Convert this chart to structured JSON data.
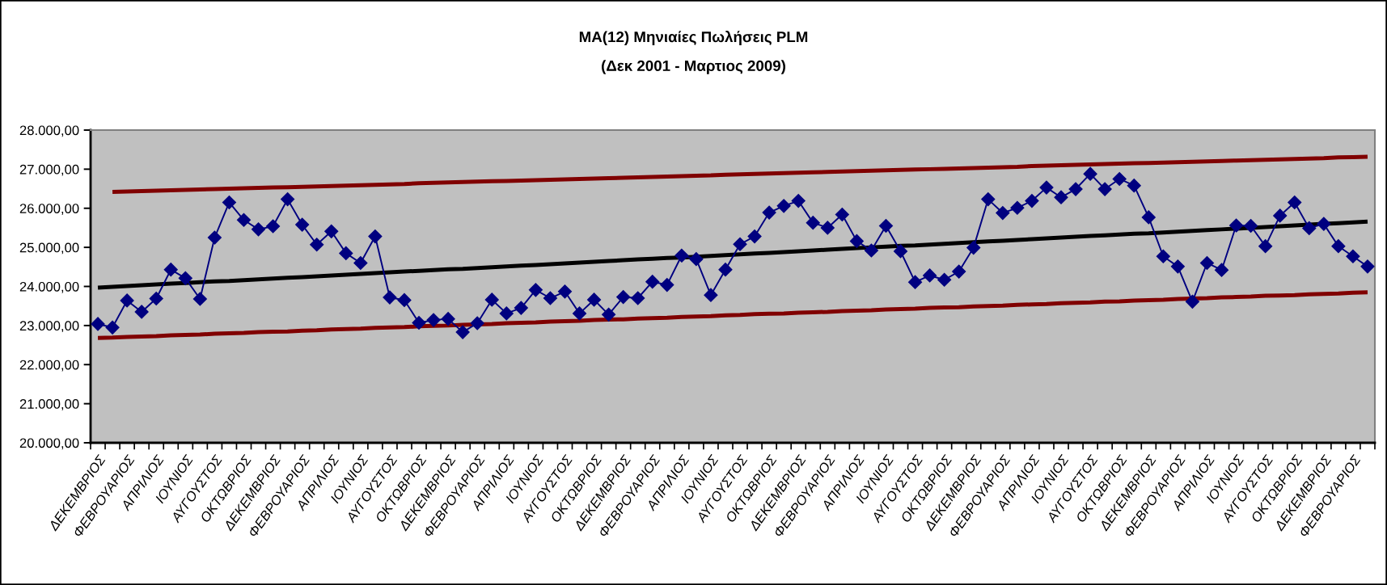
{
  "chart_data": {
    "type": "line",
    "title": "MA(12) Μηνιαίες Πωλήσεις PLM",
    "subtitle": "(Δεκ 2001 - Μαρτιος 2009)",
    "categories": [
      "ΔΕΚΕΜΒΡΙΟΣ",
      null,
      "ΦΕΒΡΟΥΑΡΙΟΣ",
      null,
      "ΑΠΡΙΛΙΟΣ",
      null,
      "ΙΟΥΝΙΟΣ",
      null,
      "ΑΥΓΟΥΣΤΟΣ",
      null,
      "ΟΚΤΩΒΡΙΟΣ",
      null,
      "ΔΕΚΕΜΒΡΙΟΣ",
      null,
      "ΦΕΒΡΟΥΑΡΙΟΣ",
      null,
      "ΑΠΡΙΛΙΟΣ",
      null,
      "ΙΟΥΝΙΟΣ",
      null,
      "ΑΥΓΟΥΣΤΟΣ",
      null,
      "ΟΚΤΩΒΡΙΟΣ",
      null,
      "ΔΕΚΕΜΒΡΙΟΣ",
      null,
      "ΦΕΒΡΟΥΑΡΙΟΣ",
      null,
      "ΑΠΡΙΛΙΟΣ",
      null,
      "ΙΟΥΝΙΟΣ",
      null,
      "ΑΥΓΟΥΣΤΟΣ",
      null,
      "ΟΚΤΩΒΡΙΟΣ",
      null,
      "ΔΕΚΕΜΒΡΙΟΣ",
      null,
      "ΦΕΒΡΟΥΑΡΙΟΣ",
      null,
      "ΑΠΡΙΛΙΟΣ",
      null,
      "ΙΟΥΝΙΟΣ",
      null,
      "ΑΥΓΟΥΣΤΟΣ",
      null,
      "ΟΚΤΩΒΡΙΟΣ",
      null,
      "ΔΕΚΕΜΒΡΙΟΣ",
      null,
      "ΦΕΒΡΟΥΑΡΙΟΣ",
      null,
      "ΑΠΡΙΛΙΟΣ",
      null,
      "ΙΟΥΝΙΟΣ",
      null,
      "ΑΥΓΟΥΣΤΟΣ",
      null,
      "ΟΚΤΩΒΡΙΟΣ",
      null,
      "ΔΕΚΕΜΒΡΙΟΣ",
      null,
      "ΦΕΒΡΟΥΑΡΙΟΣ",
      null,
      "ΑΠΡΙΛΙΟΣ",
      null,
      "ΙΟΥΝΙΟΣ",
      null,
      "ΑΥΓΟΥΣΤΟΣ",
      null,
      "ΟΚΤΩΒΡΙΟΣ",
      null,
      "ΔΕΚΕΜΒΡΙΟΣ",
      null,
      "ΦΕΒΡΟΥΑΡΙΟΣ",
      null,
      "ΑΠΡΙΛΙΟΣ",
      null,
      "ΙΟΥΝΙΟΣ",
      null,
      "ΑΥΓΟΥΣΤΟΣ",
      null,
      "ΟΚΤΩΒΡΙΟΣ",
      null,
      "ΔΕΚΕΜΒΡΙΟΣ",
      null,
      "ΦΕΒΡΟΥΑΡΙΟΣ",
      null
    ],
    "ylim": [
      20000,
      28000
    ],
    "yticks": [
      {
        "value": 20000,
        "label": "20.000,00"
      },
      {
        "value": 21000,
        "label": "21.000,00"
      },
      {
        "value": 22000,
        "label": "22.000,00"
      },
      {
        "value": 23000,
        "label": "23.000,00"
      },
      {
        "value": 24000,
        "label": "24.000,00"
      },
      {
        "value": 25000,
        "label": "25.000,00"
      },
      {
        "value": 26000,
        "label": "26.000,00"
      },
      {
        "value": 27000,
        "label": "27.000,00"
      },
      {
        "value": 28000,
        "label": "28.000,00"
      }
    ],
    "series": [
      {
        "color": "#800000",
        "values": [
          null,
          26420,
          26430,
          26440,
          26450,
          26460,
          26470,
          26480,
          26490,
          26500,
          26510,
          26520,
          26530,
          26540,
          26550,
          26560,
          26570,
          26580,
          26590,
          26600,
          26610,
          26620,
          26640,
          26650,
          26660,
          26670,
          26680,
          26690,
          26700,
          26710,
          26720,
          26730,
          26740,
          26750,
          26760,
          26770,
          26780,
          26790,
          26800,
          26810,
          26820,
          26830,
          26840,
          26860,
          26870,
          26880,
          26890,
          26900,
          26910,
          26920,
          26930,
          26940,
          26950,
          26960,
          26970,
          26980,
          26990,
          27000,
          27010,
          27020,
          27030,
          27040,
          27050,
          27060,
          27080,
          27090,
          27100,
          27110,
          27120,
          27130,
          27140,
          27150,
          27160,
          27170,
          27180,
          27190,
          27200,
          27210,
          27220,
          27230,
          27240,
          27250,
          27260,
          27270,
          27280,
          27300,
          27310,
          27320
        ]
      },
      {
        "color": "#800000",
        "values": [
          22680,
          22690,
          22710,
          22720,
          22730,
          22750,
          22760,
          22770,
          22790,
          22800,
          22810,
          22830,
          22840,
          22850,
          22870,
          22880,
          22900,
          22910,
          22920,
          22940,
          22950,
          22960,
          22980,
          22990,
          23000,
          23020,
          23030,
          23040,
          23060,
          23070,
          23080,
          23100,
          23110,
          23120,
          23140,
          23150,
          23160,
          23180,
          23190,
          23200,
          23220,
          23230,
          23240,
          23260,
          23270,
          23290,
          23300,
          23310,
          23330,
          23340,
          23350,
          23370,
          23380,
          23390,
          23410,
          23420,
          23430,
          23450,
          23460,
          23470,
          23490,
          23500,
          23510,
          23530,
          23540,
          23550,
          23570,
          23580,
          23590,
          23610,
          23620,
          23640,
          23650,
          23660,
          23680,
          23690,
          23700,
          23720,
          23730,
          23740,
          23760,
          23770,
          23780,
          23800,
          23810,
          23820,
          23840,
          23850
        ]
      },
      {
        "color": "#000000",
        "values": [
          23970,
          23990,
          24010,
          24030,
          24050,
          24070,
          24090,
          24110,
          24130,
          24140,
          24160,
          24180,
          24200,
          24220,
          24240,
          24260,
          24280,
          24300,
          24320,
          24340,
          24360,
          24380,
          24400,
          24420,
          24440,
          24450,
          24470,
          24490,
          24510,
          24530,
          24550,
          24570,
          24590,
          24610,
          24630,
          24650,
          24670,
          24690,
          24710,
          24730,
          24740,
          24760,
          24780,
          24800,
          24820,
          24840,
          24860,
          24880,
          24900,
          24920,
          24940,
          24960,
          24980,
          25000,
          25020,
          25040,
          25050,
          25070,
          25090,
          25110,
          25130,
          25150,
          25170,
          25190,
          25210,
          25230,
          25250,
          25270,
          25290,
          25310,
          25330,
          25350,
          25360,
          25380,
          25400,
          25420,
          25440,
          25460,
          25480,
          25500,
          25520,
          25540,
          25560,
          25580,
          25600,
          25620,
          25640,
          25660
        ]
      },
      {
        "color": "#000080",
        "marker": "diamond",
        "values": [
          23040,
          22950,
          23640,
          23350,
          23690,
          24430,
          24210,
          23680,
          25250,
          26150,
          25700,
          25460,
          25540,
          26230,
          25580,
          25070,
          25410,
          24850,
          24600,
          25280,
          23720,
          23650,
          23070,
          23140,
          23170,
          22830,
          23060,
          23660,
          23310,
          23450,
          23910,
          23700,
          23870,
          23310,
          23660,
          23280,
          23730,
          23700,
          24120,
          24040,
          24790,
          24700,
          23780,
          24430,
          25080,
          25280,
          25890,
          26060,
          26190,
          25630,
          25500,
          25840,
          25160,
          24920,
          25550,
          24900,
          24110,
          24280,
          24170,
          24380,
          24990,
          26230,
          25880,
          26010,
          26190,
          26530,
          26280,
          26490,
          26880,
          26490,
          26750,
          26580,
          25770,
          24770,
          24510,
          23610,
          24600,
          24420,
          25560,
          25550,
          25030,
          25810,
          26150,
          25490,
          25600,
          25030,
          24770,
          24510
        ]
      }
    ]
  }
}
